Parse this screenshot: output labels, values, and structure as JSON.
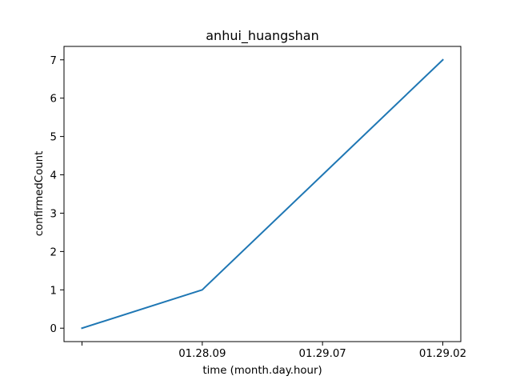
{
  "chart_data": {
    "type": "line",
    "title": "anhui_huangshan",
    "xlabel": "time (month.day.hour)",
    "ylabel": "confirmedCount",
    "categories": [
      "",
      "01.28.09",
      "01.29.07",
      "01.29.02"
    ],
    "series": [
      {
        "values": [
          0,
          1,
          4,
          7
        ],
        "color": "#1f77b4"
      }
    ],
    "yticks": [
      0,
      1,
      2,
      3,
      4,
      5,
      6,
      7
    ],
    "ylim": [
      -0.35,
      7.35
    ],
    "grid": false
  }
}
